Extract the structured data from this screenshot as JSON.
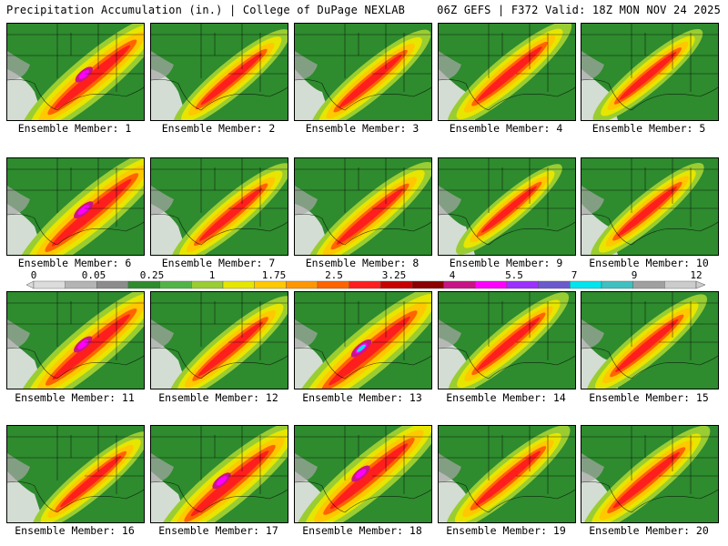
{
  "header": {
    "left": "Precipitation Accumulation (in.) | College of DuPage NEXLAB",
    "right": "06Z GEFS | F372 Valid: 18Z MON NOV 24 2025"
  },
  "members": [
    {
      "label": "Ensemble Member: 1",
      "intensity": 0.85
    },
    {
      "label": "Ensemble Member: 2",
      "intensity": 0.45
    },
    {
      "label": "Ensemble Member: 3",
      "intensity": 0.5
    },
    {
      "label": "Ensemble Member: 4",
      "intensity": 0.55
    },
    {
      "label": "Ensemble Member: 5",
      "intensity": 0.35
    },
    {
      "label": "Ensemble Member: 6",
      "intensity": 0.95
    },
    {
      "label": "Ensemble Member: 7",
      "intensity": 0.5
    },
    {
      "label": "Ensemble Member: 8",
      "intensity": 0.6
    },
    {
      "label": "Ensemble Member: 9",
      "intensity": 0.3
    },
    {
      "label": "Ensemble Member: 10",
      "intensity": 0.4
    },
    {
      "label": "Ensemble Member: 11",
      "intensity": 0.9
    },
    {
      "label": "Ensemble Member: 12",
      "intensity": 0.55
    },
    {
      "label": "Ensemble Member: 13",
      "intensity": 1.0
    },
    {
      "label": "Ensemble Member: 14",
      "intensity": 0.5
    },
    {
      "label": "Ensemble Member: 15",
      "intensity": 0.5
    },
    {
      "label": "Ensemble Member: 16",
      "intensity": 0.45
    },
    {
      "label": "Ensemble Member: 17",
      "intensity": 0.9
    },
    {
      "label": "Ensemble Member: 18",
      "intensity": 0.9
    },
    {
      "label": "Ensemble Member: 19",
      "intensity": 0.55
    },
    {
      "label": "Ensemble Member: 20",
      "intensity": 0.6
    }
  ],
  "color_scale": {
    "unit": "in.",
    "labels": [
      "0",
      "0.05",
      "0.25",
      "1",
      "1.75",
      "2.5",
      "3.25",
      "4",
      "5.5",
      "7",
      "9",
      "12"
    ],
    "colors": [
      "#dcdcdc",
      "#b4b4b4",
      "#8c8c8c",
      "#2e8b2e",
      "#52b447",
      "#9acd32",
      "#e6e600",
      "#ffc800",
      "#ff9600",
      "#ff6400",
      "#ff1e1e",
      "#c80000",
      "#8b0000",
      "#c71585",
      "#ff00ff",
      "#9b30ff",
      "#6a5acd",
      "#00e5ee",
      "#40c0c0",
      "#a0a0a0",
      "#cccccc"
    ]
  }
}
